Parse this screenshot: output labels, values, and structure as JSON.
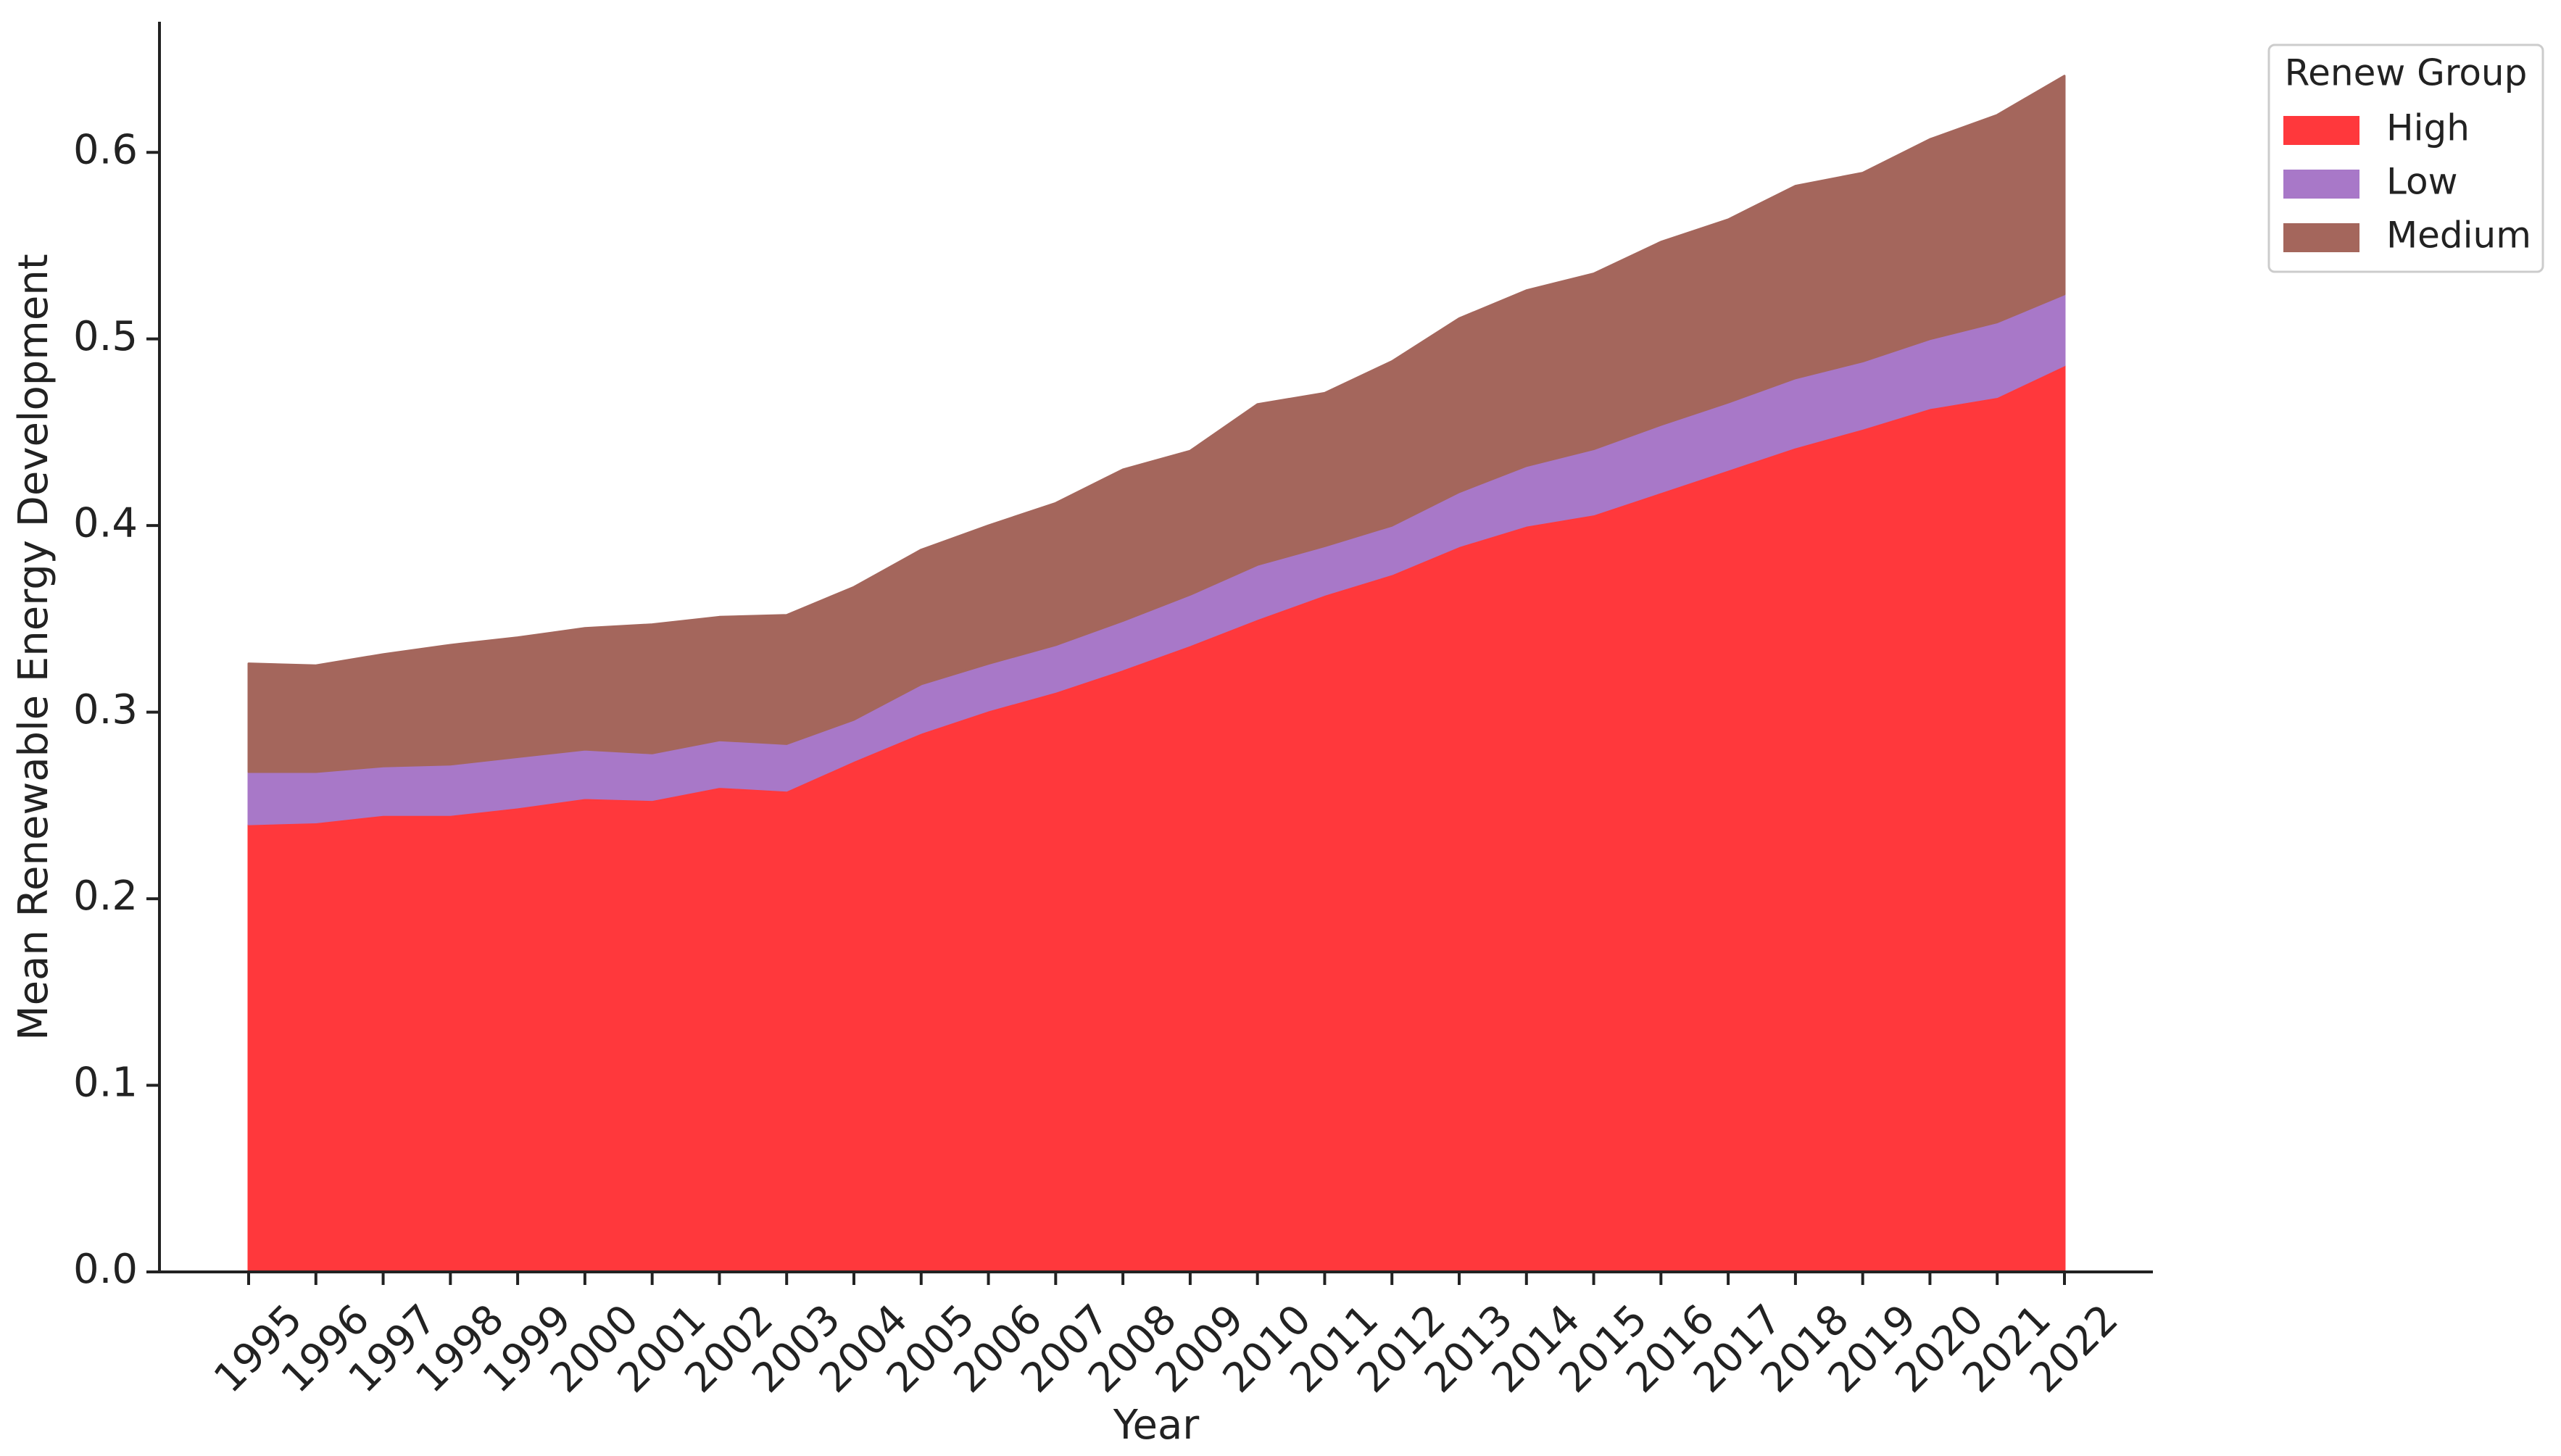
{
  "chart_data": {
    "type": "area",
    "stacked": true,
    "xlabel": "Year",
    "ylabel": "Mean Renewable Energy Development",
    "x": [
      "1995",
      "1996",
      "1997",
      "1998",
      "1999",
      "2000",
      "2001",
      "2002",
      "2003",
      "2004",
      "2005",
      "2006",
      "2007",
      "2008",
      "2009",
      "2010",
      "2011",
      "2012",
      "2013",
      "2014",
      "2015",
      "2016",
      "2017",
      "2018",
      "2019",
      "2020",
      "2021",
      "2022"
    ],
    "ylim": [
      0,
      0.67
    ],
    "yticks": [
      "0.0",
      "0.1",
      "0.2",
      "0.3",
      "0.4",
      "0.5",
      "0.6"
    ],
    "legend": {
      "title": "Renew Group",
      "placement": "top-right outside"
    },
    "series": [
      {
        "name": "High",
        "color": "#FF383C",
        "values": [
          0.24,
          0.241,
          0.245,
          0.245,
          0.249,
          0.254,
          0.253,
          0.26,
          0.258,
          0.274,
          0.289,
          0.301,
          0.311,
          0.323,
          0.336,
          0.35,
          0.363,
          0.374,
          0.389,
          0.4,
          0.406,
          0.418,
          0.43,
          0.442,
          0.452,
          0.463,
          0.469,
          0.486
        ]
      },
      {
        "name": "Low",
        "color": "#A878C8",
        "values": [
          0.028,
          0.027,
          0.026,
          0.027,
          0.027,
          0.026,
          0.025,
          0.025,
          0.025,
          0.022,
          0.026,
          0.025,
          0.025,
          0.026,
          0.027,
          0.029,
          0.026,
          0.026,
          0.029,
          0.032,
          0.035,
          0.036,
          0.036,
          0.037,
          0.036,
          0.037,
          0.04,
          0.038
        ]
      },
      {
        "name": "Medium",
        "color": "#A4665C",
        "values": [
          0.058,
          0.057,
          0.06,
          0.064,
          0.064,
          0.065,
          0.069,
          0.066,
          0.069,
          0.071,
          0.072,
          0.074,
          0.076,
          0.081,
          0.077,
          0.086,
          0.082,
          0.088,
          0.093,
          0.094,
          0.094,
          0.098,
          0.098,
          0.103,
          0.101,
          0.107,
          0.111,
          0.117
        ]
      }
    ]
  }
}
